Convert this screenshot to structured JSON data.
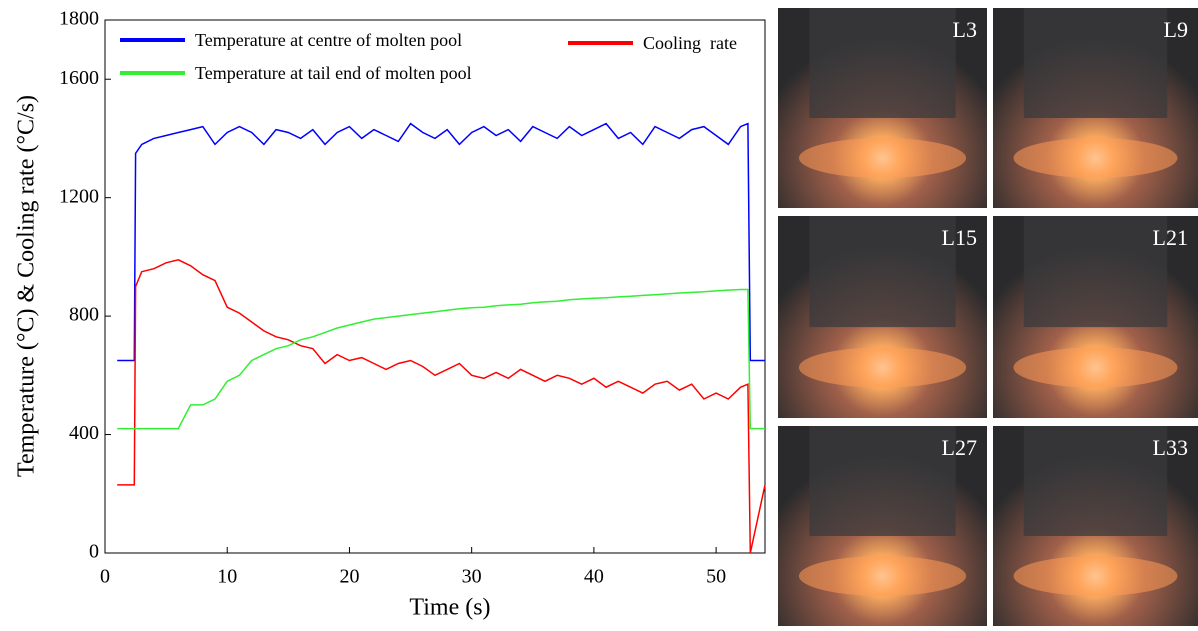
{
  "chart_data": {
    "type": "line",
    "x_label": "Time (s)",
    "y_label": "Temperature (°C) & Cooling rate (°C/s)",
    "xlim": [
      0,
      54
    ],
    "xticks": [
      0,
      10,
      20,
      30,
      40,
      50
    ],
    "ylim": [
      0,
      1800
    ],
    "yticks": [
      0,
      400,
      800,
      1200,
      1600,
      1800
    ],
    "x": [
      1,
      2.4,
      2.5,
      3,
      4,
      5,
      6,
      7,
      8,
      9,
      10,
      11,
      12,
      13,
      14,
      15,
      16,
      17,
      18,
      19,
      20,
      21,
      22,
      23,
      24,
      25,
      26,
      27,
      28,
      29,
      30,
      31,
      32,
      33,
      34,
      35,
      36,
      37,
      38,
      39,
      40,
      41,
      42,
      43,
      44,
      45,
      46,
      47,
      48,
      49,
      50,
      51,
      52,
      52.6,
      52.8,
      54
    ],
    "series": [
      {
        "name": "Temperature at centre of molten pool",
        "color": "#0000ff",
        "values": [
          650,
          650,
          1350,
          1380,
          1400,
          1410,
          1420,
          1430,
          1440,
          1380,
          1420,
          1440,
          1420,
          1380,
          1430,
          1420,
          1400,
          1430,
          1380,
          1420,
          1440,
          1400,
          1430,
          1410,
          1390,
          1450,
          1420,
          1400,
          1430,
          1380,
          1420,
          1440,
          1410,
          1430,
          1390,
          1440,
          1420,
          1400,
          1440,
          1410,
          1430,
          1450,
          1400,
          1420,
          1380,
          1440,
          1420,
          1400,
          1430,
          1440,
          1410,
          1380,
          1440,
          1450,
          650,
          650
        ]
      },
      {
        "name": "Cooling  rate",
        "color": "#ff0000",
        "values": [
          230,
          230,
          900,
          950,
          960,
          980,
          990,
          970,
          940,
          920,
          830,
          810,
          780,
          750,
          730,
          720,
          700,
          690,
          640,
          670,
          650,
          660,
          640,
          620,
          640,
          650,
          630,
          600,
          620,
          640,
          600,
          590,
          610,
          590,
          620,
          600,
          580,
          600,
          590,
          570,
          590,
          560,
          580,
          560,
          540,
          570,
          580,
          550,
          570,
          520,
          540,
          520,
          560,
          570,
          0,
          230
        ]
      },
      {
        "name": "Temperature at tail end of molten pool",
        "color": "#33ee33",
        "values": [
          420,
          420,
          420,
          420,
          420,
          420,
          420,
          500,
          500,
          520,
          580,
          600,
          650,
          670,
          690,
          700,
          720,
          730,
          745,
          760,
          770,
          780,
          790,
          795,
          800,
          805,
          810,
          815,
          820,
          825,
          828,
          830,
          835,
          838,
          840,
          845,
          848,
          850,
          855,
          858,
          860,
          862,
          865,
          867,
          870,
          872,
          875,
          878,
          880,
          882,
          885,
          888,
          890,
          890,
          420,
          420
        ]
      }
    ]
  },
  "photos": {
    "labels": [
      "L3",
      "L9",
      "L15",
      "L21",
      "L27",
      "L33"
    ]
  }
}
